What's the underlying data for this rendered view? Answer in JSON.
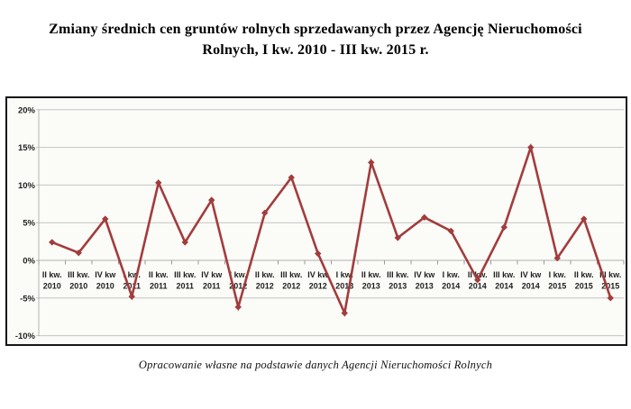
{
  "chart_data": {
    "type": "line",
    "title": "Zmiany średnich cen gruntów rolnych sprzedawanych przez Agencję Nieruchomości Rolnych, I kw. 2010 - III kw. 2015 r.",
    "title_lines": [
      "Zmiany średnich cen gruntów rolnych sprzedawanych przez Agencję Nieruchomości",
      "Rolnych, I kw. 2010 - III kw. 2015 r."
    ],
    "source_note": "Opracowanie własne na podstawie danych Agencji Nieruchomości Rolnych",
    "categories": [
      {
        "quarter": "II kw.",
        "year": "2010",
        "label": "II kw. 2010"
      },
      {
        "quarter": "III kw.",
        "year": "2010",
        "label": "III kw. 2010"
      },
      {
        "quarter": "IV kw",
        "year": "2010",
        "label": "IV kw 2010"
      },
      {
        "quarter": "I kw.",
        "year": "2011",
        "label": "I kw. 2011"
      },
      {
        "quarter": "II kw.",
        "year": "2011",
        "label": "II kw. 2011"
      },
      {
        "quarter": "III kw.",
        "year": "2011",
        "label": "III kw. 2011"
      },
      {
        "quarter": "IV kw",
        "year": "2011",
        "label": "IV kw 2011"
      },
      {
        "quarter": "I kw.",
        "year": "2012",
        "label": "I kw. 2012"
      },
      {
        "quarter": "II kw.",
        "year": "2012",
        "label": "II kw. 2012"
      },
      {
        "quarter": "III kw.",
        "year": "2012",
        "label": "III kw. 2012"
      },
      {
        "quarter": "IV kw",
        "year": "2012",
        "label": "IV kw 2012"
      },
      {
        "quarter": "I kw.",
        "year": "2013",
        "label": "I kw. 2013"
      },
      {
        "quarter": "II kw.",
        "year": "2013",
        "label": "II kw. 2013"
      },
      {
        "quarter": "III kw.",
        "year": "2013",
        "label": "III kw. 2013"
      },
      {
        "quarter": "IV kw",
        "year": "2013",
        "label": "IV kw 2013"
      },
      {
        "quarter": "I kw.",
        "year": "2014",
        "label": "I kw. 2014"
      },
      {
        "quarter": "II kw.",
        "year": "2014",
        "label": "II kw. 2014"
      },
      {
        "quarter": "III kw.",
        "year": "2014",
        "label": "III kw. 2014"
      },
      {
        "quarter": "IV kw",
        "year": "2014",
        "label": "IV kw 2014"
      },
      {
        "quarter": "I kw.",
        "year": "2015",
        "label": "I kw. 2015"
      },
      {
        "quarter": "II kw.",
        "year": "2015",
        "label": "II kw. 2015"
      },
      {
        "quarter": "III kw.",
        "year": "2015",
        "label": "III kw. 2015"
      }
    ],
    "values": [
      2.4,
      1.0,
      5.5,
      -4.8,
      10.3,
      2.4,
      8.0,
      -6.2,
      6.3,
      11.0,
      0.9,
      -7.0,
      13.0,
      3.0,
      5.7,
      3.9,
      -2.6,
      4.4,
      15.0,
      0.3,
      5.5,
      -5.0
    ],
    "unit": "%",
    "ylim": [
      -10,
      20
    ],
    "y_ticks": [
      {
        "value": 20,
        "label": "20%"
      },
      {
        "value": 15,
        "label": "15%"
      },
      {
        "value": 10,
        "label": "10%"
      },
      {
        "value": 5,
        "label": "5%"
      },
      {
        "value": 0,
        "label": "0%"
      },
      {
        "value": -5,
        "label": "-5%"
      },
      {
        "value": -10,
        "label": "-10%"
      }
    ],
    "grid": true,
    "legend": false,
    "marker": "diamond",
    "colors": {
      "line": "#a23c3c",
      "gridline": "#c4c4c4",
      "axis": "#9a9a9a",
      "text": "#1f1f1f",
      "plot_background": "#fbfbf8",
      "frame_border": "#161616"
    }
  }
}
